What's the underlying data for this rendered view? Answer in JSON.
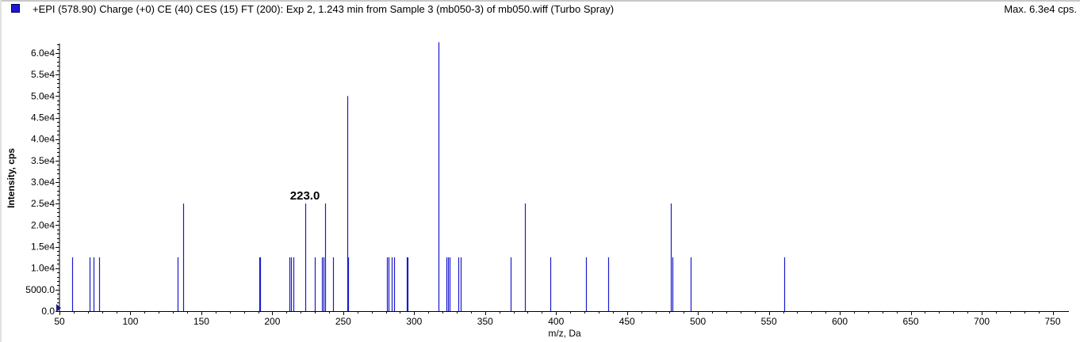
{
  "header": {
    "title": "+EPI (578.90) Charge (+0) CE (40) CES (15) FT (200): Exp 2, 1.243 min from Sample 3 (mb050-3) of mb050.wiff (Turbo Spray)",
    "max_label": "Max. 6.3e4 cps."
  },
  "colors": {
    "series": "#1a1acc",
    "axis": "#000000"
  },
  "chart_data": {
    "type": "bar",
    "title": "+EPI (578.90) Charge (+0) CE (40) CES (15) FT (200): Exp 2, 1.243 min from Sample 3 (mb050-3) of mb050.wiff (Turbo Spray)",
    "xlabel": "m/z, Da",
    "ylabel": "Intensity, cps",
    "xlim": [
      50,
      760
    ],
    "ylim": [
      0,
      62500
    ],
    "x_ticks": [
      50,
      100,
      150,
      200,
      250,
      300,
      350,
      400,
      450,
      500,
      550,
      600,
      650,
      700,
      750
    ],
    "y_ticks": [
      {
        "value": 0,
        "label": "0.0"
      },
      {
        "value": 5000,
        "label": "5000.0"
      },
      {
        "value": 10000,
        "label": "1.0e4"
      },
      {
        "value": 15000,
        "label": "1.5e4"
      },
      {
        "value": 20000,
        "label": "2.0e4"
      },
      {
        "value": 25000,
        "label": "2.5e4"
      },
      {
        "value": 30000,
        "label": "3.0e4"
      },
      {
        "value": 35000,
        "label": "3.5e4"
      },
      {
        "value": 40000,
        "label": "4.0e4"
      },
      {
        "value": 45000,
        "label": "4.5e4"
      },
      {
        "value": 50000,
        "label": "5.0e4"
      },
      {
        "value": 55000,
        "label": "5.5e4"
      },
      {
        "value": 60000,
        "label": "6.0e4"
      }
    ],
    "peaks": [
      {
        "mz": 59.0,
        "intensity": 12500
      },
      {
        "mz": 71.0,
        "intensity": 12500
      },
      {
        "mz": 74.0,
        "intensity": 12500
      },
      {
        "mz": 78.0,
        "intensity": 12500
      },
      {
        "mz": 133.0,
        "intensity": 12500
      },
      {
        "mz": 137.0,
        "intensity": 25000
      },
      {
        "mz": 191.0,
        "intensity": 12500
      },
      {
        "mz": 191.6,
        "intensity": 12500
      },
      {
        "mz": 212.0,
        "intensity": 12500
      },
      {
        "mz": 213.0,
        "intensity": 12500
      },
      {
        "mz": 215.0,
        "intensity": 12500
      },
      {
        "mz": 223.0,
        "intensity": 25000,
        "label": "223.0"
      },
      {
        "mz": 230.0,
        "intensity": 12500
      },
      {
        "mz": 235.0,
        "intensity": 12500
      },
      {
        "mz": 236.0,
        "intensity": 12500
      },
      {
        "mz": 237.0,
        "intensity": 25000
      },
      {
        "mz": 243.0,
        "intensity": 12500
      },
      {
        "mz": 253.0,
        "intensity": 50000
      },
      {
        "mz": 253.6,
        "intensity": 12500
      },
      {
        "mz": 281.0,
        "intensity": 12500
      },
      {
        "mz": 282.0,
        "intensity": 12500
      },
      {
        "mz": 284.0,
        "intensity": 12500
      },
      {
        "mz": 286.0,
        "intensity": 12500
      },
      {
        "mz": 295.0,
        "intensity": 12500
      },
      {
        "mz": 295.6,
        "intensity": 12500
      },
      {
        "mz": 317.0,
        "intensity": 62500
      },
      {
        "mz": 323.0,
        "intensity": 12500
      },
      {
        "mz": 324.0,
        "intensity": 12500
      },
      {
        "mz": 325.0,
        "intensity": 12500
      },
      {
        "mz": 331.0,
        "intensity": 12500
      },
      {
        "mz": 333.0,
        "intensity": 12500
      },
      {
        "mz": 368.0,
        "intensity": 12500
      },
      {
        "mz": 378.0,
        "intensity": 25000
      },
      {
        "mz": 396.0,
        "intensity": 12500
      },
      {
        "mz": 421.0,
        "intensity": 12500
      },
      {
        "mz": 437.0,
        "intensity": 12500
      },
      {
        "mz": 481.0,
        "intensity": 25000
      },
      {
        "mz": 482.0,
        "intensity": 12500
      },
      {
        "mz": 495.0,
        "intensity": 12500
      },
      {
        "mz": 561.0,
        "intensity": 12500
      }
    ]
  }
}
